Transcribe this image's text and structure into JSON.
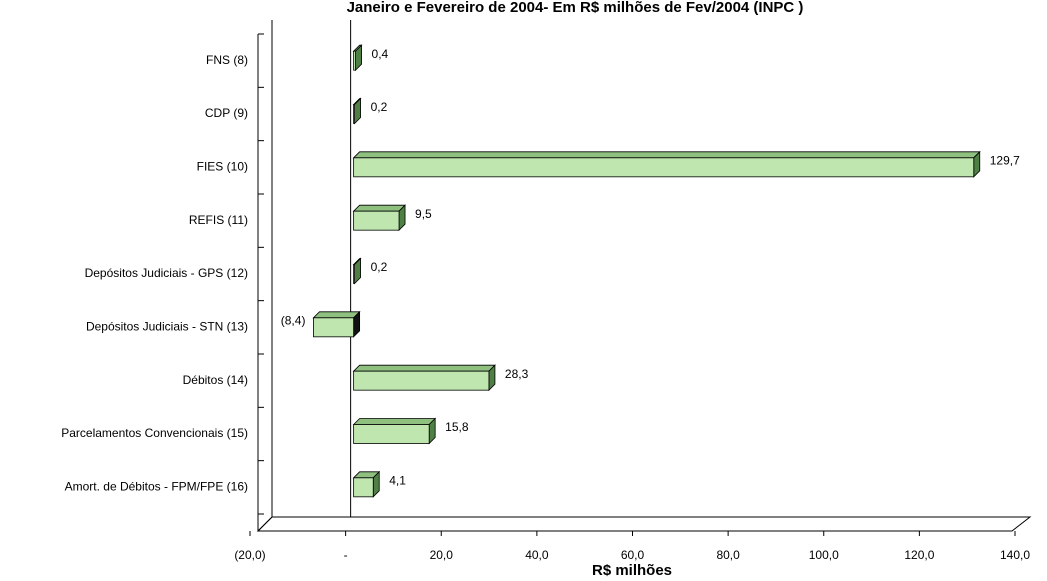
{
  "chart_data": {
    "type": "bar3d",
    "title": "Janeiro e Fevereiro de 2004- Em R$ milhões de Fev/2004 (INPC )",
    "x_label": "R$ milhões",
    "categories": [
      "FNS (8)",
      "CDP (9)",
      "FIES (10)",
      "REFIS (11)",
      "Depósitos Judiciais - GPS (12)",
      "Depósitos Judiciais - STN (13)",
      "Débitos  (14)",
      "Parcelamentos Convencionais (15)",
      "Amort. de Débitos - FPM/FPE (16)"
    ],
    "values": [
      0.4,
      0.2,
      129.7,
      9.5,
      0.2,
      -8.4,
      28.3,
      15.8,
      4.1
    ],
    "value_labels": [
      "0,4",
      "0,2",
      "129,7",
      "9,5",
      "0,2",
      "(8,4)",
      "28,3",
      "15,8",
      "4,1"
    ],
    "color": "#c0e6b0",
    "xlim": [
      -20,
      140
    ],
    "xticks": [
      {
        "value": -20,
        "label": "(20,0)"
      },
      {
        "value": 0,
        "label": "-"
      },
      {
        "value": 20,
        "label": "20,0"
      },
      {
        "value": 40,
        "label": "40,0"
      },
      {
        "value": 60,
        "label": "60,0"
      },
      {
        "value": 80,
        "label": "80,0"
      },
      {
        "value": 100,
        "label": "100,0"
      },
      {
        "value": 120,
        "label": "120,0"
      },
      {
        "value": 140,
        "label": "140,0"
      }
    ]
  }
}
